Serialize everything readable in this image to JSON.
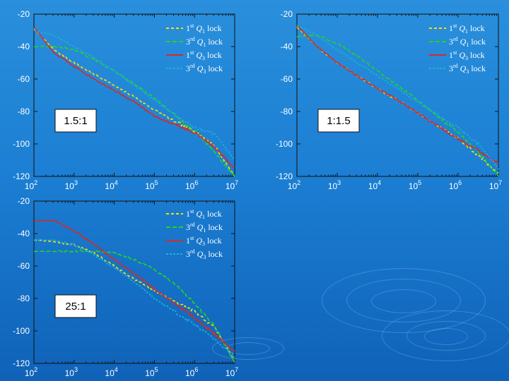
{
  "chart_data": [
    {
      "type": "line",
      "title": "1.5:1",
      "xscale": "log",
      "xlim": [
        100,
        10000000
      ],
      "ylim": [
        -120,
        -20
      ],
      "xticks": [
        {
          "base": "10",
          "exp": "2"
        },
        {
          "base": "10",
          "exp": "3"
        },
        {
          "base": "10",
          "exp": "4"
        },
        {
          "base": "10",
          "exp": "5"
        },
        {
          "base": "10",
          "exp": "6"
        },
        {
          "base": "10",
          "exp": "7"
        }
      ],
      "yticks": [
        "-20",
        "-40",
        "-60",
        "-80",
        "-100",
        "-120"
      ],
      "series": [
        {
          "name": "1st Q1 lock",
          "legend": {
            "sup": "st",
            "pre": "1",
            "q": "Q",
            "sub": "1",
            "post": " lock"
          },
          "color": "#f2e600",
          "dash": "4,3",
          "x": [
            100,
            316,
            1000,
            3162,
            10000,
            31623,
            100000,
            316228,
            1000000,
            3162278,
            10000000
          ],
          "y": [
            -29,
            -42,
            -50,
            -57,
            -64,
            -71,
            -79,
            -86,
            -92,
            -101,
            -120
          ]
        },
        {
          "name": "3rd Q1 lock",
          "legend": {
            "sup": "rd",
            "pre": "3",
            "q": "Q",
            "sub": "1",
            "post": " lock"
          },
          "color": "#22d622",
          "dash": "6,3",
          "x": [
            100,
            316,
            1000,
            3162,
            10000,
            31623,
            100000,
            316228,
            1000000,
            3162278,
            10000000
          ],
          "y": [
            -40,
            -40,
            -42,
            -48,
            -55,
            -63,
            -72,
            -82,
            -92,
            -105,
            -120
          ]
        },
        {
          "name": "1st Q3 lock",
          "legend": {
            "sup": "st",
            "pre": "1",
            "q": "Q",
            "sub": "3",
            "post": " lock"
          },
          "color": "#d42a2a",
          "dash": "",
          "x": [
            100,
            316,
            1000,
            3162,
            10000,
            31623,
            100000,
            316228,
            1000000,
            3162278,
            10000000
          ],
          "y": [
            -28,
            -44,
            -52,
            -60,
            -67,
            -74,
            -83,
            -88,
            -93,
            -102,
            -115
          ]
        },
        {
          "name": "3rd Q3 lock",
          "legend": {
            "sup": "rd",
            "pre": "3",
            "q": "Q",
            "sub": "3",
            "post": " lock"
          },
          "color": "#19b3d1",
          "dash": "3,2",
          "x": [
            100,
            316,
            1000,
            3162,
            10000,
            31623,
            100000,
            316228,
            1000000,
            3162278,
            10000000
          ],
          "y": [
            -30,
            -33,
            -40,
            -47,
            -55,
            -64,
            -73,
            -82,
            -90,
            -94,
            -110
          ]
        }
      ]
    },
    {
      "type": "line",
      "title": "1:1.5",
      "xscale": "log",
      "xlim": [
        100,
        10000000
      ],
      "ylim": [
        -120,
        -20
      ],
      "xticks": [
        {
          "base": "10",
          "exp": "2"
        },
        {
          "base": "10",
          "exp": "3"
        },
        {
          "base": "10",
          "exp": "4"
        },
        {
          "base": "10",
          "exp": "5"
        },
        {
          "base": "10",
          "exp": "6"
        },
        {
          "base": "10",
          "exp": "7"
        }
      ],
      "yticks": [
        "-20",
        "-40",
        "-60",
        "-80",
        "-100",
        "-120"
      ],
      "series": [
        {
          "name": "1st Q1 lock",
          "legend": {
            "sup": "st",
            "pre": "1",
            "q": "Q",
            "sub": "1",
            "post": " lock"
          },
          "color": "#f2e600",
          "dash": "4,3",
          "x": [
            100,
            316,
            1000,
            3162,
            10000,
            31623,
            100000,
            316228,
            1000000,
            3162278,
            10000000
          ],
          "y": [
            -28,
            -40,
            -50,
            -58,
            -66,
            -73,
            -81,
            -89,
            -97,
            -107,
            -118
          ]
        },
        {
          "name": "3rd Q1 lock",
          "legend": {
            "sup": "rd",
            "pre": "3",
            "q": "Q",
            "sub": "1",
            "post": " lock"
          },
          "color": "#22d622",
          "dash": "6,3",
          "x": [
            100,
            316,
            1000,
            3162,
            10000,
            31623,
            100000,
            316228,
            1000000,
            3162278,
            10000000
          ],
          "y": [
            -34,
            -33,
            -38,
            -46,
            -55,
            -64,
            -73,
            -83,
            -93,
            -105,
            -120
          ]
        },
        {
          "name": "1st Q3 lock",
          "legend": {
            "sup": "st",
            "pre": "1",
            "q": "Q",
            "sub": "3",
            "post": " lock"
          },
          "color": "#d42a2a",
          "dash": "",
          "x": [
            100,
            316,
            1000,
            3162,
            10000,
            31623,
            100000,
            316228,
            1000000,
            3162278,
            10000000
          ],
          "y": [
            -27,
            -40,
            -50,
            -58,
            -66,
            -73,
            -81,
            -89,
            -97,
            -104,
            -112
          ]
        },
        {
          "name": "3rd Q3 lock",
          "legend": {
            "sup": "rd",
            "pre": "3",
            "q": "Q",
            "sub": "3",
            "post": " lock"
          },
          "color": "#19b3d1",
          "dash": "3,2",
          "x": [
            100,
            316,
            1000,
            3162,
            10000,
            31623,
            100000,
            316228,
            1000000,
            3162278,
            10000000
          ],
          "y": [
            -27,
            -33,
            -42,
            -50,
            -58,
            -66,
            -74,
            -82,
            -90,
            -100,
            -115
          ]
        }
      ]
    },
    {
      "type": "line",
      "title": "25:1",
      "xscale": "log",
      "xlim": [
        100,
        10000000
      ],
      "ylim": [
        -120,
        -20
      ],
      "xticks": [
        {
          "base": "10",
          "exp": "2"
        },
        {
          "base": "10",
          "exp": "3"
        },
        {
          "base": "10",
          "exp": "4"
        },
        {
          "base": "10",
          "exp": "5"
        },
        {
          "base": "10",
          "exp": "6"
        },
        {
          "base": "10",
          "exp": "7"
        }
      ],
      "yticks": [
        "-20",
        "-40",
        "-60",
        "-80",
        "-100",
        "-120"
      ],
      "series": [
        {
          "name": "1st Q1 lock",
          "legend": {
            "sup": "st",
            "pre": "1",
            "q": "Q",
            "sub": "1",
            "post": " lock"
          },
          "color": "#f2e600",
          "dash": "4,3",
          "x": [
            100,
            316,
            1000,
            3162,
            10000,
            31623,
            100000,
            316228,
            1000000,
            3162278,
            10000000
          ],
          "y": [
            -44,
            -45,
            -47,
            -52,
            -60,
            -68,
            -75,
            -82,
            -88,
            -98,
            -118
          ]
        },
        {
          "name": "3rd Q1 lock",
          "legend": {
            "sup": "rd",
            "pre": "3",
            "q": "Q",
            "sub": "1",
            "post": " lock"
          },
          "color": "#22d622",
          "dash": "6,3",
          "x": [
            100,
            316,
            1000,
            3162,
            10000,
            31623,
            100000,
            316228,
            1000000,
            3162278,
            10000000
          ],
          "y": [
            -51,
            -51,
            -51,
            -51,
            -52,
            -56,
            -62,
            -71,
            -83,
            -97,
            -120
          ]
        },
        {
          "name": "1st Q3 lock",
          "legend": {
            "sup": "st",
            "pre": "1",
            "q": "Q",
            "sub": "3",
            "post": " lock"
          },
          "color": "#d42a2a",
          "dash": "",
          "x": [
            100,
            316,
            1000,
            3162,
            10000,
            31623,
            100000,
            316228,
            1000000,
            3162278,
            10000000
          ],
          "y": [
            -32,
            -32,
            -38,
            -47,
            -56,
            -65,
            -74,
            -83,
            -92,
            -102,
            -113
          ]
        },
        {
          "name": "3rd Q3 lock",
          "legend": {
            "sup": "rd",
            "pre": "3",
            "q": "Q",
            "sub": "3",
            "post": " lock"
          },
          "color": "#19b3d1",
          "dash": "3,2",
          "x": [
            100,
            316,
            1000,
            3162,
            10000,
            31623,
            100000,
            316228,
            1000000,
            3162278,
            10000000
          ],
          "y": [
            -44,
            -44,
            -47,
            -53,
            -61,
            -70,
            -80,
            -88,
            -96,
            -105,
            -116
          ]
        }
      ]
    }
  ]
}
